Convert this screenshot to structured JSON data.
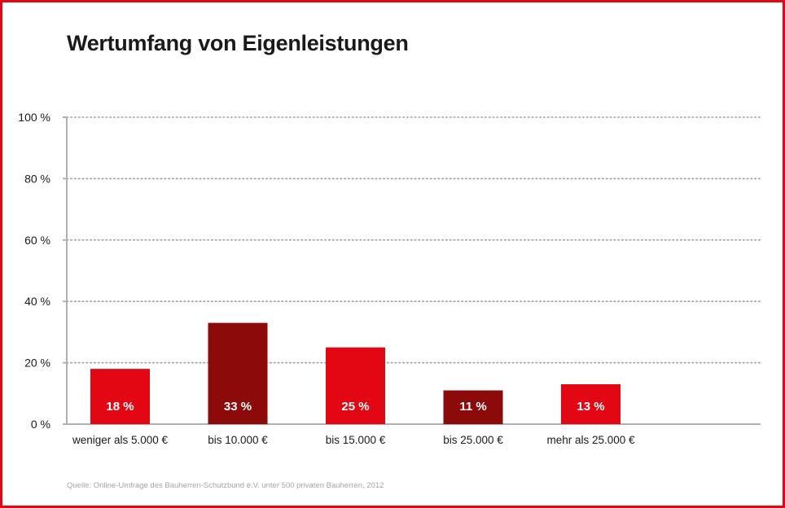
{
  "title": "Wertumfang von Eigenleistungen",
  "source": "Quelle: Online-Umfrage des Bauherren-Schutzbund e.V. unter 500 privaten Bauherren, 2012",
  "colors": {
    "light": "#e30613",
    "dark": "#8c0a0a",
    "frame": "#e30613"
  },
  "chart_data": {
    "type": "bar",
    "title": "Wertumfang von Eigenleistungen",
    "xlabel": "",
    "ylabel": "",
    "ylim": [
      0,
      100
    ],
    "yticks": [
      0,
      20,
      40,
      60,
      80,
      100
    ],
    "ytick_labels": [
      "0 %",
      "20 %",
      "40 %",
      "60 %",
      "80 %",
      "100 %"
    ],
    "grid": true,
    "categories": [
      "weniger als 5.000 €",
      "bis 10.000 €",
      "bis 15.000 €",
      "bis 25.000 €",
      "mehr als 25.000 €"
    ],
    "values": [
      18,
      33,
      25,
      11,
      13
    ],
    "value_labels": [
      "18 %",
      "33 %",
      "25 %",
      "11 %",
      "13 %"
    ],
    "bar_colors": [
      "#e30613",
      "#8c0a0a",
      "#e30613",
      "#8c0a0a",
      "#e30613"
    ]
  }
}
